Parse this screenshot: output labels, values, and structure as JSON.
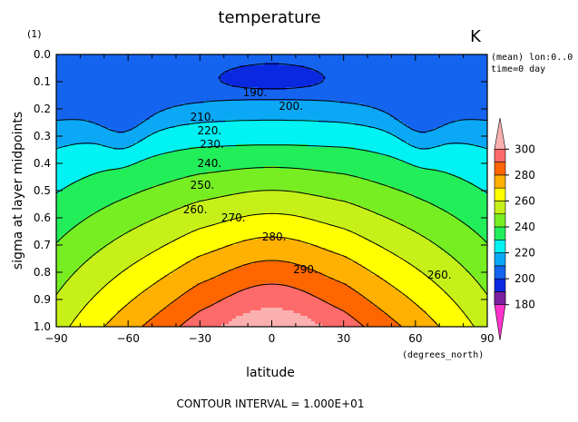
{
  "chart_data": {
    "type": "contour",
    "title": "temperature",
    "units": "K",
    "xlabel": "latitude",
    "ylabel": "sigma at layer midpoints",
    "y_unit_label": "(1)",
    "x_unit_label": "(degrees_north)",
    "meta_line1": "(mean) lon:0..0",
    "meta_line2": "time=0 day",
    "footer": "CONTOUR INTERVAL = 1.000E+01",
    "xlim": [
      -90,
      90
    ],
    "ylim": [
      0.0,
      1.0
    ],
    "y_inverted": true,
    "x_ticks": [
      -90,
      -60,
      -30,
      0,
      30,
      60,
      90
    ],
    "x_tick_labels": [
      "−90",
      "−60",
      "−30",
      "0",
      "30",
      "60",
      "90"
    ],
    "y_ticks": [
      0.0,
      0.1,
      0.2,
      0.3,
      0.4,
      0.5,
      0.6,
      0.7,
      0.8,
      0.9,
      1.0
    ],
    "y_tick_labels": [
      "0.0",
      "0.1",
      "0.2",
      "0.3",
      "0.4",
      "0.5",
      "0.6",
      "0.7",
      "0.8",
      "0.9",
      "1.0"
    ],
    "levels": [
      190,
      200,
      210,
      220,
      230,
      240,
      250,
      260,
      270,
      280,
      290
    ],
    "fill_bands": [
      {
        "max": 180,
        "color": "#7a1f9e"
      },
      {
        "max": 190,
        "color": "#1c1c9c"
      },
      {
        "max": 200,
        "color": "#0a28e0"
      },
      {
        "max": 210,
        "color": "#1464f0"
      },
      {
        "max": 220,
        "color": "#0aa8f5"
      },
      {
        "max": 230,
        "color": "#00f2f2"
      },
      {
        "max": 240,
        "color": "#22ee5a"
      },
      {
        "max": 250,
        "color": "#77ee22"
      },
      {
        "max": 260,
        "color": "#c6f018"
      },
      {
        "max": 270,
        "color": "#ffff00"
      },
      {
        "max": 280,
        "color": "#ffb000"
      },
      {
        "max": 290,
        "color": "#ff6600"
      },
      {
        "max": 300,
        "color": "#fc6a6a"
      },
      {
        "max": 999,
        "color": "#fbb0b0"
      }
    ],
    "contour_labels": [
      {
        "text": "190.",
        "x": -7,
        "y": 0.14
      },
      {
        "text": "200.",
        "x": 8,
        "y": 0.19
      },
      {
        "text": "210.",
        "x": -29,
        "y": 0.23
      },
      {
        "text": "220.",
        "x": -26,
        "y": 0.28
      },
      {
        "text": "230.",
        "x": -25,
        "y": 0.33
      },
      {
        "text": "240.",
        "x": -26,
        "y": 0.4
      },
      {
        "text": "250.",
        "x": -29,
        "y": 0.48
      },
      {
        "text": "260.",
        "x": -32,
        "y": 0.57
      },
      {
        "text": "270.",
        "x": -16,
        "y": 0.6
      },
      {
        "text": "280.",
        "x": 1,
        "y": 0.67
      },
      {
        "text": "290.",
        "x": 14,
        "y": 0.79
      },
      {
        "text": "260.",
        "x": 70,
        "y": 0.81
      }
    ],
    "colorbar": {
      "labels": [
        "300",
        "280",
        "260",
        "240",
        "220",
        "200",
        "180"
      ],
      "values": [
        300,
        280,
        260,
        240,
        220,
        200,
        180
      ],
      "range": [
        170,
        310
      ]
    }
  }
}
